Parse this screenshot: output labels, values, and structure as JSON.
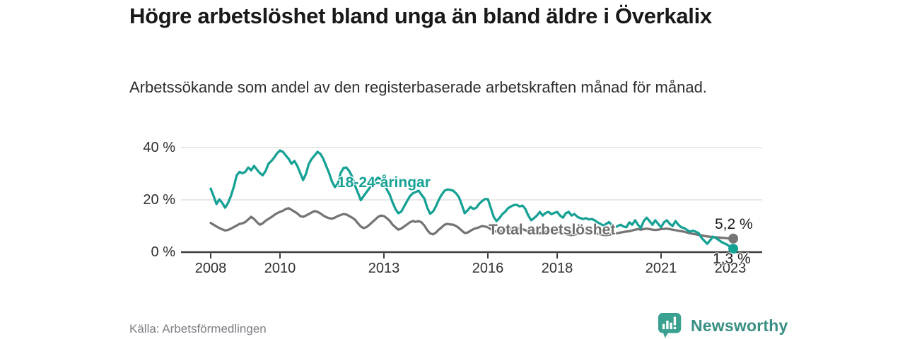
{
  "title": "Högre arbetslöshet bland unga än bland äldre i Överkalix",
  "subtitle": "Arbetssökande som andel av den registerbaserade arbetskraften månad för månad.",
  "source": "Källa: Arbetsförmedlingen",
  "branding": {
    "name": "Newsworthy",
    "logo_icon": "bar-chart-speech-bubble"
  },
  "colors": {
    "youth_line": "#16a195",
    "total_line": "#757575",
    "total_label": "#6e6e6e",
    "grid": "#d9d9d9",
    "axis": "#3d3d3d",
    "title_text": "#191919",
    "tick_text": "#303030",
    "value_text": "#1c1c1c",
    "source_text": "#7e7e86",
    "brand_teal": "#3aa191",
    "brand_text": "#3a8f84"
  },
  "chart_data": {
    "type": "line",
    "title": "Högre arbetslöshet bland unga än bland äldre i Överkalix",
    "subtitle": "Arbetssökande som andel av den registerbaserade arbetskraften månad för månad.",
    "unit": "percent",
    "x_start": "2008-01",
    "x_end": "2023-02",
    "x_step_months": 1,
    "grid": "horizontal",
    "legend_position": "inline-labels",
    "ylim": [
      0,
      44
    ],
    "xlim_years": [
      2007.1,
      2024.0
    ],
    "y_ticks": [
      {
        "value": 0,
        "label": "0 %"
      },
      {
        "value": 20,
        "label": "20 %"
      },
      {
        "value": 40,
        "label": "40 %"
      }
    ],
    "x_ticks": [
      {
        "year": 2008,
        "label": "2008"
      },
      {
        "year": 2010,
        "label": "2010"
      },
      {
        "year": 2013,
        "label": "2013"
      },
      {
        "year": 2016,
        "label": "2016"
      },
      {
        "year": 2018,
        "label": "2018"
      },
      {
        "year": 2021,
        "label": "2021"
      },
      {
        "year": 2023,
        "label": "2023"
      }
    ],
    "series": [
      {
        "name": "18-24-åringar",
        "color": "#16a195",
        "end_label": "1,3 %",
        "end_value": 1.3,
        "values": [
          24.3,
          21.5,
          18.4,
          20.2,
          18.8,
          17.0,
          18.8,
          21.5,
          25.0,
          29.4,
          30.7,
          30.2,
          30.7,
          32.4,
          31.3,
          33.0,
          31.6,
          30.3,
          29.4,
          31.0,
          33.8,
          34.9,
          36.2,
          37.8,
          38.9,
          38.4,
          37.0,
          35.7,
          33.8,
          34.9,
          33.0,
          30.3,
          27.6,
          30.0,
          33.8,
          35.7,
          37.0,
          38.4,
          37.6,
          35.7,
          33.0,
          30.3,
          27.0,
          24.9,
          26.2,
          30.3,
          32.2,
          32.4,
          31.0,
          28.9,
          25.4,
          22.7,
          19.9,
          21.5,
          23.0,
          24.5,
          26.0,
          27.5,
          28.5,
          27.8,
          26.5,
          24.0,
          22.0,
          19.0,
          16.5,
          14.9,
          15.5,
          17.5,
          19.5,
          21.4,
          22.5,
          23.0,
          23.5,
          22.0,
          20.5,
          17.0,
          14.7,
          15.5,
          17.5,
          20.0,
          22.0,
          23.5,
          24.0,
          23.8,
          23.5,
          22.5,
          21.0,
          18.0,
          14.9,
          16.0,
          17.3,
          16.5,
          17.0,
          18.5,
          19.5,
          20.3,
          20.3,
          17.0,
          13.5,
          11.9,
          13.0,
          14.5,
          15.5,
          16.8,
          17.5,
          18.0,
          18.1,
          17.5,
          17.8,
          16.5,
          14.0,
          12.2,
          13.0,
          14.0,
          15.4,
          14.0,
          15.0,
          15.4,
          14.5,
          15.0,
          15.4,
          14.0,
          13.2,
          14.9,
          15.4,
          14.0,
          14.6,
          13.5,
          13.0,
          12.7,
          13.0,
          12.5,
          12.7,
          12.2,
          11.4,
          10.8,
          10.2,
          10.8,
          11.5,
          10.2,
          9.5,
          10.0,
          10.5,
          9.8,
          9.5,
          11.4,
          10.5,
          12.2,
          10.5,
          9.2,
          11.9,
          13.2,
          11.9,
          10.5,
          12.2,
          10.8,
          9.5,
          11.4,
          12.2,
          10.8,
          10.0,
          11.9,
          10.5,
          9.5,
          9.2,
          8.5,
          7.8,
          8.2,
          7.8,
          7.3,
          5.5,
          4.3,
          3.2,
          4.5,
          5.9,
          5.4,
          4.6,
          3.8,
          3.3,
          2.8,
          1.8,
          1.3
        ]
      },
      {
        "name": "Total arbetslöshet",
        "color": "#757575",
        "end_label": "5,2 %",
        "end_value": 5.2,
        "values": [
          11.2,
          10.5,
          9.8,
          9.2,
          8.7,
          8.3,
          8.5,
          9.0,
          9.6,
          10.2,
          10.8,
          11.0,
          11.5,
          12.5,
          13.5,
          12.7,
          11.5,
          10.5,
          11.0,
          12.0,
          12.7,
          13.4,
          14.2,
          14.9,
          15.4,
          15.8,
          16.5,
          16.8,
          16.2,
          15.5,
          14.8,
          13.8,
          13.5,
          14.0,
          14.6,
          15.2,
          15.7,
          15.4,
          14.8,
          14.0,
          13.4,
          13.0,
          12.8,
          13.2,
          13.8,
          14.2,
          14.6,
          14.4,
          13.8,
          13.2,
          12.4,
          11.0,
          9.8,
          9.2,
          9.6,
          10.5,
          11.5,
          12.5,
          13.5,
          14.0,
          13.8,
          13.0,
          12.0,
          10.5,
          9.5,
          8.6,
          9.0,
          9.8,
          10.6,
          11.4,
          11.9,
          11.6,
          11.9,
          11.4,
          10.2,
          8.4,
          7.2,
          6.8,
          7.5,
          8.6,
          9.5,
          10.5,
          10.8,
          10.6,
          10.5,
          10.0,
          9.2,
          8.2,
          7.3,
          7.5,
          8.2,
          8.8,
          9.2,
          9.5,
          10.0,
          9.8,
          9.5,
          8.8,
          8.2,
          7.8,
          8.0,
          8.2,
          8.6,
          8.4,
          8.6,
          8.8,
          9.2,
          9.0,
          8.8,
          8.4,
          8.0,
          7.6,
          7.3,
          7.0,
          7.2,
          7.5,
          7.8,
          8.0,
          8.2,
          8.0,
          7.8,
          7.5,
          7.2,
          6.9,
          6.7,
          6.5,
          6.7,
          7.0,
          7.2,
          7.4,
          7.6,
          7.5,
          7.4,
          7.2,
          7.0,
          6.8,
          6.6,
          6.5,
          6.7,
          6.9,
          7.1,
          7.3,
          7.5,
          7.7,
          7.9,
          8.0,
          8.3,
          8.6,
          8.8,
          8.6,
          8.8,
          9.0,
          8.8,
          8.6,
          8.5,
          8.6,
          8.8,
          8.9,
          9.0,
          8.8,
          8.6,
          8.4,
          8.2,
          8.0,
          7.8,
          7.5,
          7.2,
          7.0,
          6.8,
          6.6,
          6.4,
          6.2,
          6.0,
          5.9,
          5.8,
          5.7,
          5.6,
          5.5,
          5.4,
          5.3,
          5.3,
          5.2
        ]
      }
    ]
  }
}
